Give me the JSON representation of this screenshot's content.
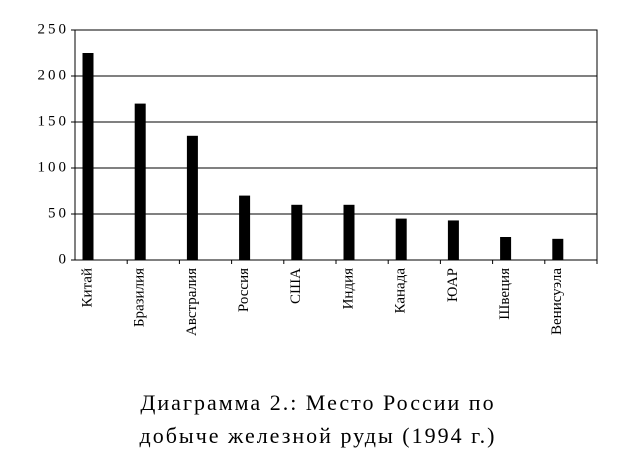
{
  "chart_data": {
    "type": "bar",
    "title": [
      "Диаграмма 2.: Место России по",
      "добыче железной руды (1994 г.)"
    ],
    "categories": [
      "Китай",
      "Бразилия",
      "Австралия",
      "Россия",
      "США",
      "Индия",
      "Канада",
      "ЮАР",
      "Швеция",
      "Венисуэла"
    ],
    "values": [
      225,
      170,
      135,
      70,
      60,
      60,
      45,
      43,
      25,
      23
    ],
    "color": "#000000",
    "ylim": [
      0,
      250
    ],
    "yticks": [
      0,
      50,
      100,
      150,
      200,
      250
    ],
    "grid": true
  }
}
